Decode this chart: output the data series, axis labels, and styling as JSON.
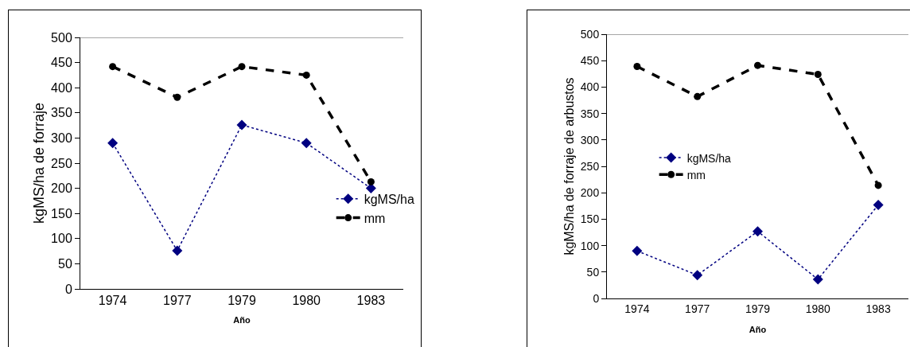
{
  "chart_data": [
    {
      "type": "line",
      "xlabel": "Año",
      "ylabel": "kgMS/ha de forraje",
      "categories": [
        "1974",
        "1977",
        "1979",
        "1980",
        "1983"
      ],
      "ylim": [
        0,
        500
      ],
      "yticks": [
        0,
        50,
        100,
        150,
        200,
        250,
        300,
        350,
        400,
        450,
        500
      ],
      "grid": false,
      "legend": "right",
      "series": [
        {
          "name": "kgMS/ha",
          "color": "#000080",
          "marker": "diamond",
          "line_style": "dotted",
          "values": [
            290,
            76,
            326,
            290,
            200
          ]
        },
        {
          "name": "mm",
          "color": "#000000",
          "marker": "circle",
          "line_style": "dashed",
          "values": [
            442,
            381,
            442,
            425,
            213
          ]
        }
      ]
    },
    {
      "type": "line",
      "xlabel": "Año",
      "ylabel": "kgMS/ha de forraje de arbustos",
      "categories": [
        "1974",
        "1977",
        "1979",
        "1980",
        "1983"
      ],
      "ylim": [
        0,
        500
      ],
      "yticks": [
        0,
        50,
        100,
        150,
        200,
        250,
        300,
        350,
        400,
        450,
        500
      ],
      "grid": false,
      "legend": "left",
      "series": [
        {
          "name": "kgMS/ha",
          "color": "#000080",
          "marker": "diamond",
          "line_style": "dotted",
          "values": [
            90,
            44,
            127,
            36,
            177
          ]
        },
        {
          "name": "mm",
          "color": "#000000",
          "marker": "circle",
          "line_style": "dashed",
          "values": [
            439,
            382,
            441,
            424,
            214
          ]
        }
      ]
    }
  ]
}
